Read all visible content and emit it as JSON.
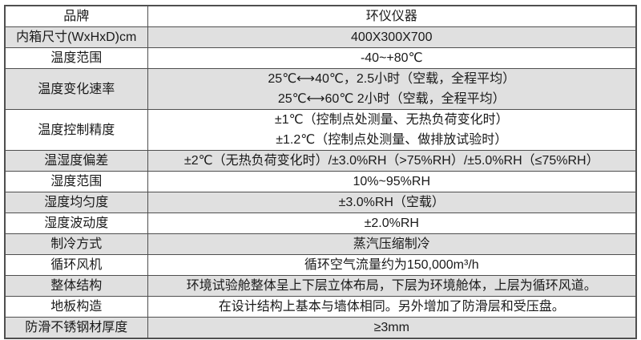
{
  "table": {
    "name": "environmental-chamber-spec-table",
    "colors": {
      "border": "#4f4f4f",
      "alt_row_background": "#e0e0e0",
      "text": "#1a1a1a",
      "background": "#ffffff"
    },
    "rows": [
      {
        "label": "品牌",
        "lines": [
          "环仪仪器"
        ],
        "shaded": false
      },
      {
        "label": "内箱尺寸(WxHxD)cm",
        "lines": [
          "400X300X700"
        ],
        "shaded": true
      },
      {
        "label": "温度范围",
        "lines": [
          "-40~+80℃"
        ],
        "shaded": false
      },
      {
        "label": "温度变化速率",
        "lines": [
          "25℃⟷40℃，2.5小时（空载，全程平均）",
          "25℃⟷60℃ 2小时（空载，全程平均）"
        ],
        "shaded": true
      },
      {
        "label": "温度控制精度",
        "lines": [
          "±1℃（控制点处测量、无热负荷变化时）",
          "±1.2℃（控制点处测量、做排放试验时）"
        ],
        "shaded": false
      },
      {
        "label": "温湿度偏差",
        "lines": [
          "±2℃（无热负荷变化时）/±3.0%RH（>75%RH）/±5.0%RH（≤75%RH）"
        ],
        "shaded": true
      },
      {
        "label": "湿度范围",
        "lines": [
          "10%~95%RH"
        ],
        "shaded": false
      },
      {
        "label": "湿度均匀度",
        "lines": [
          "±3.0%RH（空载）"
        ],
        "shaded": true
      },
      {
        "label": "湿度波动度",
        "lines": [
          "±2.0%RH"
        ],
        "shaded": false
      },
      {
        "label": "制冷方式",
        "lines": [
          "蒸汽压缩制冷"
        ],
        "shaded": true
      },
      {
        "label": "循环风机",
        "lines": [
          "循环空气流量约为150,000m³/h"
        ],
        "shaded": false
      },
      {
        "label": "整体结构",
        "lines": [
          "环境试验舱整体呈上下层立体布局，下层为环境舱体，上层为循环风道。"
        ],
        "shaded": true
      },
      {
        "label": "地板构造",
        "lines": [
          "在设计结构上基本与墙体相同。另外增加了防滑层和受压盘。"
        ],
        "shaded": false
      },
      {
        "label": "防滑不锈钢材厚度",
        "lines": [
          "≥3mm"
        ],
        "shaded": true
      }
    ]
  }
}
